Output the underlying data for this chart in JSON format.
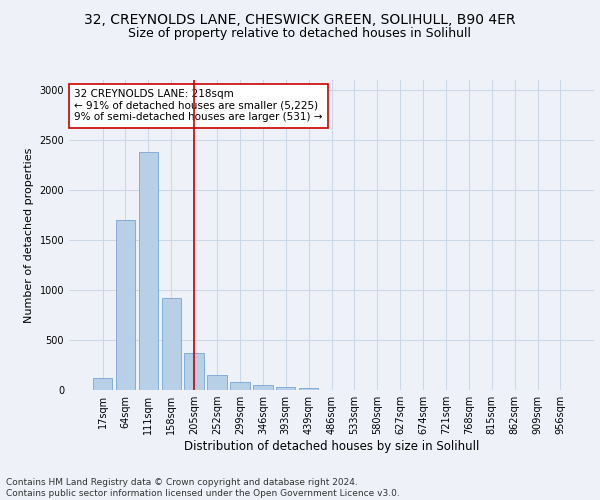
{
  "title1": "32, CREYNOLDS LANE, CHESWICK GREEN, SOLIHULL, B90 4ER",
  "title2": "Size of property relative to detached houses in Solihull",
  "xlabel": "Distribution of detached houses by size in Solihull",
  "ylabel": "Number of detached properties",
  "bar_labels": [
    "17sqm",
    "64sqm",
    "111sqm",
    "158sqm",
    "205sqm",
    "252sqm",
    "299sqm",
    "346sqm",
    "393sqm",
    "439sqm",
    "486sqm",
    "533sqm",
    "580sqm",
    "627sqm",
    "674sqm",
    "721sqm",
    "768sqm",
    "815sqm",
    "862sqm",
    "909sqm",
    "956sqm"
  ],
  "bar_values": [
    120,
    1700,
    2380,
    920,
    370,
    155,
    85,
    55,
    35,
    20,
    0,
    0,
    0,
    0,
    0,
    0,
    0,
    0,
    0,
    0,
    0
  ],
  "bar_color": "#b8cfe8",
  "bar_edgecolor": "#6699cc",
  "vline_color": "#cc0000",
  "annotation_text": "32 CREYNOLDS LANE: 218sqm\n← 91% of detached houses are smaller (5,225)\n9% of semi-detached houses are larger (531) →",
  "annotation_box_color": "#ffffff",
  "annotation_box_edgecolor": "#cc0000",
  "ylim": [
    0,
    3100
  ],
  "yticks": [
    0,
    500,
    1000,
    1500,
    2000,
    2500,
    3000
  ],
  "footer": "Contains HM Land Registry data © Crown copyright and database right 2024.\nContains public sector information licensed under the Open Government Licence v3.0.",
  "bg_color": "#eef2f8",
  "title1_fontsize": 10,
  "title2_fontsize": 9,
  "annotation_fontsize": 7.5,
  "footer_fontsize": 6.5,
  "ylabel_fontsize": 8,
  "xlabel_fontsize": 8.5,
  "tick_fontsize": 7
}
